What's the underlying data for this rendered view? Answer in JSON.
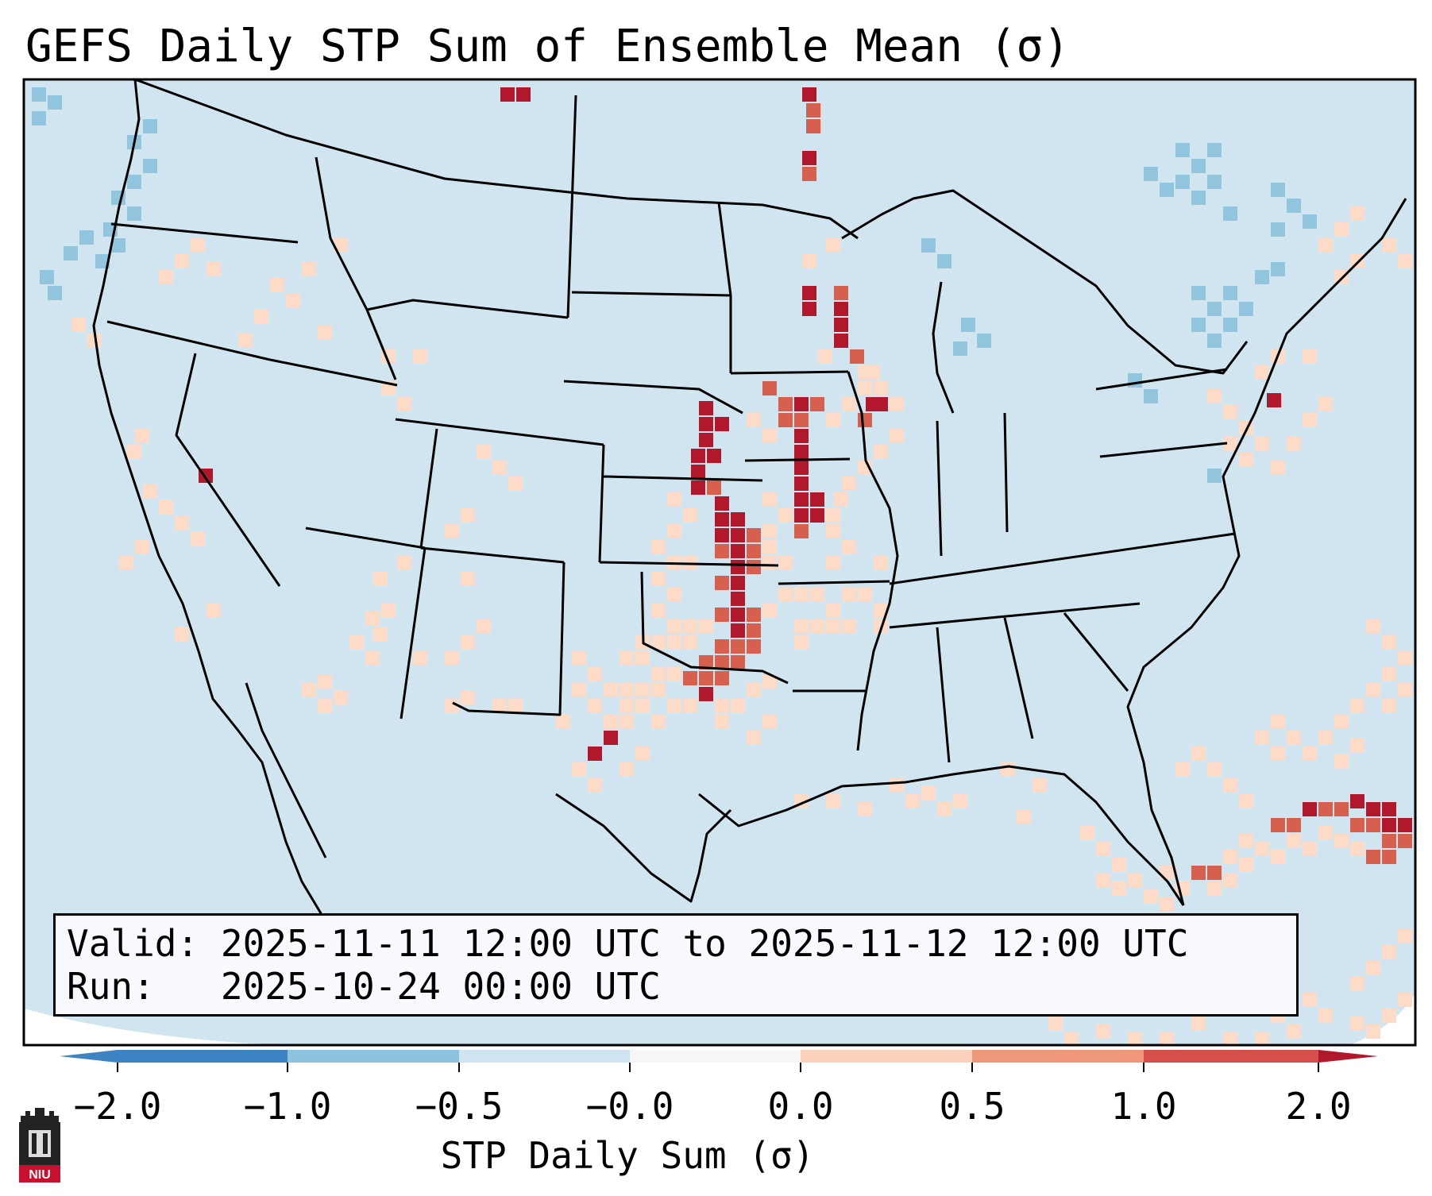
{
  "title": "GEFS Daily STP Sum of Ensemble Mean (σ)",
  "valid_label": "Valid:",
  "valid_text": "2025-11-11 12:00 UTC to 2025-11-12 12:00 UTC",
  "run_label": "Run:",
  "run_text": "2025-10-24 00:00 UTC",
  "colorbar": {
    "label": "STP Daily Sum (σ)",
    "ticks": [
      "−2.0",
      "−1.0",
      "−0.5",
      "−0.0",
      "0.0",
      "0.5",
      "1.0",
      "2.0"
    ],
    "colors": [
      "#3c84c3",
      "#8ec3e0",
      "#cfe3f0",
      "#f6f6f6",
      "#fbd3bd",
      "#ee9879",
      "#d6504b"
    ],
    "under_color": "#3c84c3",
    "over_color": "#b2182b"
  },
  "legend_colors": {
    "background": "#d1e5f0",
    "light_red": "#fddbc7",
    "mid_red": "#f4a582",
    "strong_red": "#d6604d",
    "dark_red": "#b2182b",
    "light_blue": "#92c5de"
  },
  "logo": {
    "text": "NIU"
  }
}
